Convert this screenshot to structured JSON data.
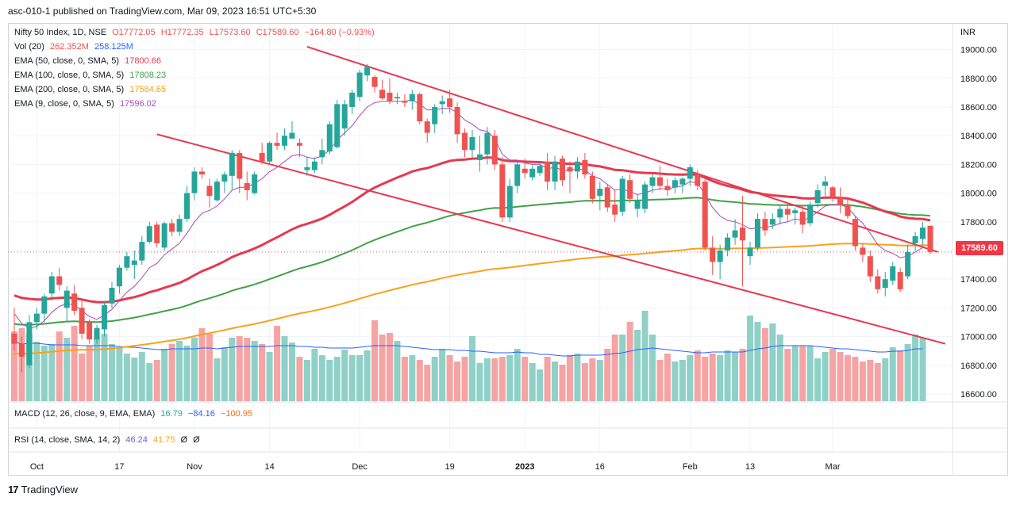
{
  "header": "asc-010-1 published on TradingView.com, Mar 09, 2023 16:51 UTC+5:30",
  "footer": {
    "logo_text": "TradingView"
  },
  "legend": {
    "main": {
      "name": "Nifty 50 Index, 1D, NSE",
      "o": "O17772.05",
      "h": "H17772.35",
      "l": "L17573.60",
      "c": "C17589.60",
      "chg": "−164.80 (−0.93%)"
    },
    "vol": {
      "name": "Vol (20)",
      "v1": "262.352M",
      "v2": "258.125M"
    },
    "ema50": {
      "name": "EMA (50, close, 0, SMA, 5)",
      "value": "17800.66"
    },
    "ema100": {
      "name": "EMA (100, close, 0, SMA, 5)",
      "value": "17808.23"
    },
    "ema200": {
      "name": "EMA (200, close, 0, SMA, 5)",
      "value": "17584.65"
    },
    "ema9": {
      "name": "EMA (9, close, 0, SMA, 5)",
      "value": "17596.02"
    },
    "macd": {
      "name": "MACD (12, 26, close, 9, EMA, EMA)",
      "v1": "16.79",
      "v2": "−84.16",
      "v3": "−100.95"
    },
    "rsi": {
      "name": "RSI (14, close, SMA, 14, 2)",
      "v1": "46.24",
      "v2": "41.75",
      "v3": "Ø",
      "v4": "Ø"
    }
  },
  "price_tag": "17589.60",
  "colors": {
    "up": "#26a69a",
    "down": "#ef5350",
    "ema50": "#e53950",
    "ema100": "#43a047",
    "ema200": "#f7a21b",
    "ema9": "#ab47bc",
    "trend": "#e53950",
    "vol_up": "#8fd0c7",
    "vol_down": "#f5a3a3",
    "vol_ma": "#2962ff"
  },
  "chart_data": {
    "type": "candlestick",
    "y_unit": "INR",
    "ylim": [
      16550,
      19180
    ],
    "y_ticks": [
      16600,
      16800,
      17000,
      17200,
      17400,
      17600,
      17800,
      18000,
      18200,
      18400,
      18600,
      18800,
      19000
    ],
    "y_tick_labels": [
      "16600.00",
      "16800.00",
      "17000.00",
      "17200.00",
      "17400.00",
      "17600.00",
      "17800.00",
      "18000.00",
      "18200.00",
      "18400.00",
      "18600.00",
      "18800.00",
      "19000.00"
    ],
    "x_ticks": [
      {
        "index": 3,
        "label": "Oct"
      },
      {
        "index": 14,
        "label": "17"
      },
      {
        "index": 24,
        "label": "Nov"
      },
      {
        "index": 34,
        "label": "14"
      },
      {
        "index": 46,
        "label": "Dec"
      },
      {
        "index": 58,
        "label": "19"
      },
      {
        "index": 68,
        "label": "2023"
      },
      {
        "index": 78,
        "label": "16"
      },
      {
        "index": 90,
        "label": "Feb"
      },
      {
        "index": 98,
        "label": "13"
      },
      {
        "index": 109,
        "label": "Mar"
      }
    ],
    "candles": [
      [
        17020,
        17200,
        16900,
        16950
      ],
      [
        16950,
        17000,
        16750,
        16860
      ],
      [
        16800,
        17150,
        16780,
        17100
      ],
      [
        17100,
        17200,
        17050,
        17160
      ],
      [
        17160,
        17300,
        17100,
        17280
      ],
      [
        17300,
        17450,
        17250,
        17420
      ],
      [
        17420,
        17480,
        17320,
        17360
      ],
      [
        17200,
        17350,
        17100,
        17320
      ],
      [
        17300,
        17360,
        17150,
        17180
      ],
      [
        17200,
        17250,
        16980,
        17020
      ],
      [
        17100,
        17120,
        16950,
        16980
      ],
      [
        16980,
        17080,
        16950,
        17060
      ],
      [
        17050,
        17250,
        17000,
        17220
      ],
      [
        17230,
        17380,
        17200,
        17340
      ],
      [
        17350,
        17500,
        17300,
        17480
      ],
      [
        17480,
        17590,
        17460,
        17560
      ],
      [
        17500,
        17600,
        17400,
        17530
      ],
      [
        17530,
        17700,
        17500,
        17660
      ],
      [
        17660,
        17800,
        17650,
        17770
      ],
      [
        17780,
        17800,
        17620,
        17650
      ],
      [
        17620,
        17800,
        17600,
        17790
      ],
      [
        17790,
        17820,
        17700,
        17730
      ],
      [
        17730,
        17850,
        17700,
        17820
      ],
      [
        17820,
        18050,
        17800,
        18000
      ],
      [
        18000,
        18180,
        17950,
        18150
      ],
      [
        18150,
        18180,
        18100,
        18130
      ],
      [
        18050,
        18100,
        17900,
        17980
      ],
      [
        17950,
        18100,
        17940,
        18080
      ],
      [
        18080,
        18150,
        18000,
        18130
      ],
      [
        18120,
        18300,
        18020,
        18280
      ],
      [
        18280,
        18300,
        18000,
        18100
      ],
      [
        18070,
        18150,
        17950,
        18020
      ],
      [
        18000,
        18150,
        17990,
        18130
      ],
      [
        18280,
        18350,
        18200,
        18220
      ],
      [
        18220,
        18360,
        18200,
        18350
      ],
      [
        18350,
        18420,
        18300,
        18330
      ],
      [
        18330,
        18450,
        18300,
        18400
      ],
      [
        18380,
        18500,
        18380,
        18420
      ],
      [
        18350,
        18380,
        18250,
        18330
      ],
      [
        18160,
        18250,
        18120,
        18180
      ],
      [
        18160,
        18250,
        18140,
        18220
      ],
      [
        18250,
        18380,
        18200,
        18300
      ],
      [
        18290,
        18500,
        18270,
        18480
      ],
      [
        18320,
        18650,
        18310,
        18620
      ],
      [
        18450,
        18650,
        18400,
        18620
      ],
      [
        18600,
        18720,
        18550,
        18700
      ],
      [
        18670,
        18860,
        18640,
        18840
      ],
      [
        18820,
        18900,
        18780,
        18880
      ],
      [
        18810,
        18820,
        18700,
        18740
      ],
      [
        18720,
        18790,
        18650,
        18660
      ],
      [
        18700,
        18800,
        18620,
        18640
      ],
      [
        18660,
        18700,
        18620,
        18670
      ],
      [
        18640,
        18690,
        18600,
        18630
      ],
      [
        18640,
        18720,
        18580,
        18690
      ],
      [
        18690,
        18700,
        18480,
        18500
      ],
      [
        18500,
        18520,
        18350,
        18420
      ],
      [
        18480,
        18620,
        18420,
        18600
      ],
      [
        18620,
        18680,
        18550,
        18640
      ],
      [
        18660,
        18720,
        18560,
        18600
      ],
      [
        18600,
        18630,
        18350,
        18410
      ],
      [
        18420,
        18450,
        18250,
        18300
      ],
      [
        18300,
        18440,
        18250,
        18390
      ],
      [
        18230,
        18400,
        18150,
        18270
      ],
      [
        18270,
        18460,
        18200,
        18420
      ],
      [
        18400,
        18440,
        18160,
        18200
      ],
      [
        18200,
        18250,
        17800,
        17830
      ],
      [
        17830,
        18100,
        17800,
        18050
      ],
      [
        18050,
        18220,
        18000,
        18200
      ],
      [
        18170,
        18240,
        18100,
        18140
      ],
      [
        18110,
        18200,
        18090,
        18170
      ],
      [
        18140,
        18220,
        18120,
        18190
      ],
      [
        18220,
        18280,
        18020,
        18080
      ],
      [
        18080,
        18260,
        18020,
        18220
      ],
      [
        18240,
        18260,
        18050,
        18090
      ],
      [
        18180,
        18220,
        18000,
        18150
      ],
      [
        18150,
        18250,
        18100,
        18220
      ],
      [
        18230,
        18280,
        18100,
        18130
      ],
      [
        18120,
        18150,
        17930,
        17960
      ],
      [
        17980,
        18080,
        17880,
        18030
      ],
      [
        18040,
        18060,
        17870,
        17900
      ],
      [
        17920,
        18020,
        17800,
        17850
      ],
      [
        17870,
        18120,
        17840,
        18100
      ],
      [
        18090,
        18130,
        17930,
        17960
      ],
      [
        17890,
        17990,
        17830,
        17950
      ],
      [
        17890,
        18080,
        17860,
        18060
      ],
      [
        18050,
        18130,
        18000,
        18110
      ],
      [
        18110,
        18190,
        18020,
        18050
      ],
      [
        18050,
        18100,
        17980,
        18020
      ],
      [
        18040,
        18110,
        18000,
        18090
      ],
      [
        18060,
        18110,
        18000,
        18100
      ],
      [
        18100,
        18200,
        18050,
        18180
      ],
      [
        18130,
        18160,
        18020,
        18050
      ],
      [
        18080,
        18100,
        17600,
        17620
      ],
      [
        17620,
        17700,
        17430,
        17520
      ],
      [
        17520,
        17640,
        17400,
        17600
      ],
      [
        17600,
        17720,
        17560,
        17690
      ],
      [
        17690,
        17820,
        17640,
        17740
      ],
      [
        17760,
        17980,
        17350,
        17670
      ],
      [
        17560,
        17660,
        17500,
        17620
      ],
      [
        17620,
        17860,
        17600,
        17820
      ],
      [
        17820,
        17870,
        17700,
        17740
      ],
      [
        17780,
        17860,
        17750,
        17820
      ],
      [
        17830,
        17920,
        17780,
        17890
      ],
      [
        17890,
        17920,
        17800,
        17850
      ],
      [
        17860,
        17900,
        17780,
        17880
      ],
      [
        17870,
        17920,
        17720,
        17780
      ],
      [
        17790,
        17940,
        17770,
        17920
      ],
      [
        17930,
        18060,
        17900,
        18020
      ],
      [
        18050,
        18120,
        17980,
        18080
      ],
      [
        18040,
        18050,
        17940,
        17970
      ],
      [
        17970,
        18040,
        17860,
        17920
      ],
      [
        17920,
        17960,
        17820,
        17840
      ],
      [
        17820,
        17840,
        17600,
        17630
      ],
      [
        17620,
        17650,
        17520,
        17570
      ],
      [
        17560,
        17600,
        17380,
        17420
      ],
      [
        17420,
        17470,
        17300,
        17330
      ],
      [
        17340,
        17450,
        17280,
        17400
      ],
      [
        17390,
        17520,
        17360,
        17490
      ],
      [
        17450,
        17480,
        17310,
        17330
      ],
      [
        17420,
        17640,
        17400,
        17590
      ],
      [
        17650,
        17730,
        17600,
        17700
      ],
      [
        17680,
        17800,
        17640,
        17760
      ],
      [
        17772.05,
        17772.35,
        17573.6,
        17589.6
      ]
    ],
    "volume": [
      88,
      92,
      84,
      75,
      70,
      72,
      88,
      80,
      95,
      60,
      70,
      80,
      85,
      72,
      68,
      60,
      55,
      62,
      48,
      52,
      66,
      72,
      76,
      70,
      80,
      92,
      85,
      54,
      68,
      80,
      82,
      80,
      76,
      72,
      62,
      95,
      82,
      74,
      56,
      52,
      66,
      58,
      52,
      56,
      65,
      58,
      58,
      64,
      102,
      84,
      86,
      76,
      56,
      58,
      52,
      46,
      56,
      66,
      58,
      50,
      56,
      82,
      48,
      54,
      54,
      56,
      58,
      66,
      56,
      48,
      40,
      56,
      50,
      46,
      58,
      60,
      48,
      54,
      52,
      66,
      84,
      84,
      100,
      90,
      114,
      84,
      52,
      60,
      50,
      52,
      58,
      64,
      56,
      60,
      58,
      64,
      62,
      66,
      108,
      100,
      92,
      98,
      84,
      66,
      70,
      70,
      70,
      54,
      62,
      66,
      62,
      58,
      56,
      50,
      52,
      48,
      54,
      68,
      64,
      72,
      84,
      80
    ],
    "volume_ma": [
      75,
      72,
      73,
      73,
      72,
      71,
      71,
      71,
      71,
      70,
      70,
      70,
      70,
      70,
      69,
      68,
      68,
      67,
      66,
      65,
      65,
      66,
      66,
      66,
      66,
      67,
      67,
      66,
      67,
      68,
      69,
      69,
      69,
      69,
      69,
      70,
      70,
      70,
      69,
      69,
      68,
      68,
      67,
      67,
      67,
      67,
      68,
      69,
      70,
      70,
      70,
      70,
      69,
      68,
      67,
      66,
      65,
      65,
      65,
      64,
      64,
      63,
      63,
      62,
      61,
      61,
      61,
      62,
      61,
      61,
      59,
      59,
      58,
      57,
      57,
      58,
      58,
      58,
      58,
      59,
      60,
      61,
      63,
      65,
      66,
      67,
      66,
      65,
      64,
      63,
      62,
      61,
      61,
      62,
      62,
      62,
      62,
      62,
      64,
      66,
      67,
      69,
      70,
      70,
      70,
      70,
      70,
      69,
      68,
      67,
      66,
      66,
      65,
      64,
      63,
      62,
      62,
      63,
      63,
      64,
      66,
      66
    ],
    "ema9": [
      17160,
      17090,
      17060,
      17070,
      17110,
      17170,
      17210,
      17230,
      17220,
      17180,
      17140,
      17120,
      17150,
      17190,
      17250,
      17310,
      17350,
      17410,
      17480,
      17510,
      17570,
      17610,
      17650,
      17720,
      17800,
      17860,
      17880,
      17910,
      17960,
      18020,
      18040,
      18040,
      18070,
      18100,
      18150,
      18180,
      18220,
      18260,
      18270,
      18250,
      18240,
      18260,
      18300,
      18370,
      18420,
      18470,
      18540,
      18600,
      18630,
      18640,
      18640,
      18640,
      18640,
      18650,
      18620,
      18580,
      18580,
      18590,
      18590,
      18560,
      18510,
      18480,
      18440,
      18430,
      18380,
      18270,
      18230,
      18230,
      18210,
      18200,
      18200,
      18170,
      18180,
      18160,
      18160,
      18170,
      18160,
      18120,
      18100,
      18060,
      18020,
      18030,
      18010,
      17990,
      18000,
      18020,
      18030,
      18030,
      18040,
      18050,
      18080,
      18070,
      17990,
      17900,
      17840,
      17810,
      17800,
      17780,
      17750,
      17760,
      17760,
      17770,
      17790,
      17800,
      17820,
      17810,
      17830,
      17870,
      17910,
      17920,
      17920,
      17900,
      17840,
      17790,
      17720,
      17640,
      17600,
      17580,
      17550,
      17560,
      17590,
      17620,
      17605
    ]
  }
}
